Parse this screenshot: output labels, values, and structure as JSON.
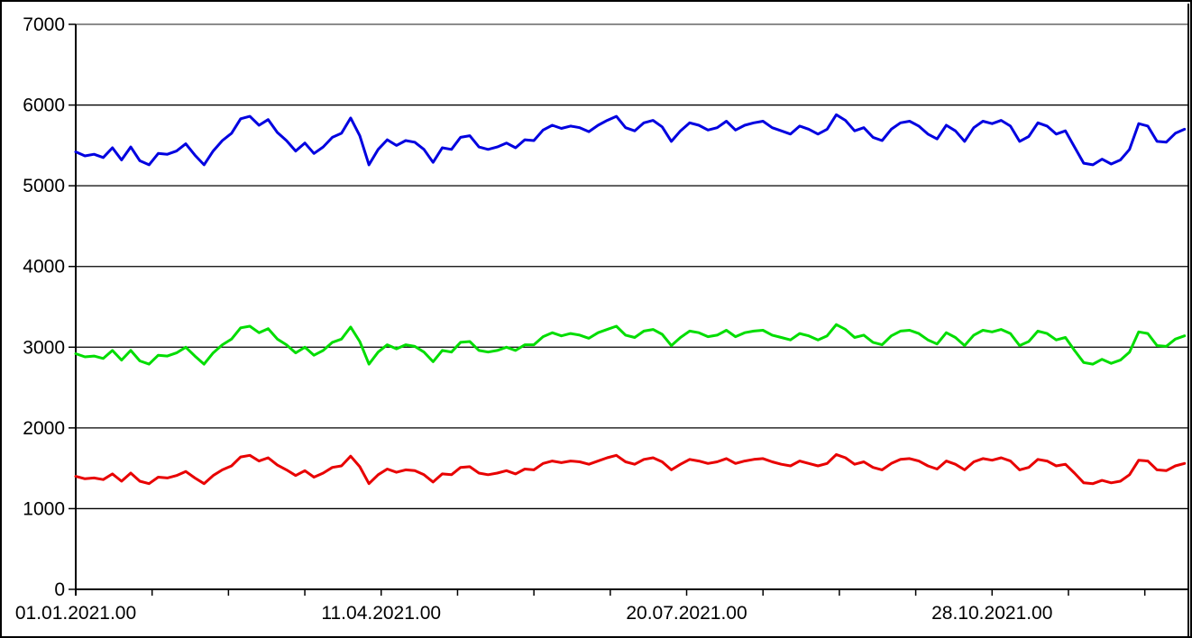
{
  "chart_data": {
    "type": "line",
    "title": "",
    "xlabel": "",
    "ylabel": "",
    "legend_position": "none",
    "grid": "horizontal",
    "ylim": [
      0,
      7000
    ],
    "y_ticks": [
      0,
      1000,
      2000,
      3000,
      4000,
      5000,
      6000,
      7000
    ],
    "xlim_days": [
      0,
      364
    ],
    "x_tick_interval_days": 25,
    "x_axis_labels": [
      {
        "label": "01.01.2021.00",
        "day": 0
      },
      {
        "label": "11.04.2021.00",
        "day": 100
      },
      {
        "label": "20.07.2021.00",
        "day": 200
      },
      {
        "label": "28.10.2021.00",
        "day": 300
      }
    ],
    "x_start_day": 0,
    "x_step_days": 3,
    "colors": {
      "background": "#ffffff",
      "axis": "#000000",
      "gridline": "#000000",
      "plot_top_border": "#8c8c8c",
      "right_border": "#000000",
      "tick_label": "#000000"
    },
    "series": [
      {
        "name": "series-blue",
        "color": "#0000e0",
        "values": [
          5420,
          5370,
          5390,
          5350,
          5470,
          5320,
          5480,
          5310,
          5260,
          5400,
          5390,
          5430,
          5520,
          5380,
          5260,
          5430,
          5560,
          5650,
          5830,
          5860,
          5750,
          5820,
          5660,
          5560,
          5430,
          5530,
          5400,
          5480,
          5600,
          5650,
          5840,
          5620,
          5260,
          5450,
          5570,
          5500,
          5560,
          5540,
          5450,
          5290,
          5470,
          5450,
          5600,
          5620,
          5480,
          5450,
          5480,
          5530,
          5470,
          5570,
          5560,
          5690,
          5750,
          5710,
          5740,
          5720,
          5670,
          5750,
          5810,
          5860,
          5720,
          5680,
          5780,
          5810,
          5730,
          5550,
          5680,
          5780,
          5750,
          5690,
          5720,
          5800,
          5690,
          5750,
          5780,
          5800,
          5720,
          5680,
          5640,
          5740,
          5700,
          5640,
          5700,
          5880,
          5810,
          5680,
          5720,
          5600,
          5560,
          5700,
          5780,
          5800,
          5740,
          5640,
          5580,
          5750,
          5680,
          5550,
          5720,
          5800,
          5770,
          5810,
          5740,
          5550,
          5610,
          5780,
          5740,
          5640,
          5680,
          5480,
          5280,
          5260,
          5330,
          5270,
          5320,
          5450,
          5770,
          5740,
          5550,
          5540,
          5650,
          5700
        ]
      },
      {
        "name": "series-green",
        "color": "#00dd00",
        "values": [
          2920,
          2880,
          2890,
          2860,
          2960,
          2840,
          2960,
          2830,
          2790,
          2900,
          2890,
          2930,
          3000,
          2890,
          2790,
          2930,
          3030,
          3100,
          3240,
          3260,
          3180,
          3230,
          3100,
          3030,
          2930,
          3000,
          2900,
          2960,
          3060,
          3100,
          3250,
          3070,
          2790,
          2940,
          3030,
          2980,
          3030,
          3010,
          2940,
          2820,
          2960,
          2940,
          3060,
          3070,
          2960,
          2940,
          2960,
          3000,
          2960,
          3030,
          3030,
          3130,
          3180,
          3140,
          3170,
          3150,
          3110,
          3180,
          3220,
          3260,
          3150,
          3120,
          3200,
          3220,
          3160,
          3020,
          3120,
          3200,
          3180,
          3130,
          3150,
          3210,
          3130,
          3180,
          3200,
          3210,
          3150,
          3120,
          3090,
          3170,
          3140,
          3090,
          3140,
          3280,
          3220,
          3120,
          3150,
          3060,
          3030,
          3140,
          3200,
          3210,
          3170,
          3090,
          3040,
          3180,
          3120,
          3020,
          3150,
          3210,
          3190,
          3220,
          3170,
          3020,
          3070,
          3200,
          3170,
          3090,
          3120,
          2960,
          2810,
          2790,
          2850,
          2800,
          2840,
          2940,
          3190,
          3170,
          3020,
          3010,
          3100,
          3140
        ]
      },
      {
        "name": "series-red",
        "color": "#e80000",
        "values": [
          1400,
          1370,
          1380,
          1360,
          1430,
          1340,
          1440,
          1340,
          1310,
          1390,
          1380,
          1410,
          1460,
          1380,
          1310,
          1410,
          1480,
          1530,
          1640,
          1660,
          1590,
          1630,
          1540,
          1480,
          1410,
          1470,
          1390,
          1440,
          1510,
          1530,
          1650,
          1520,
          1310,
          1420,
          1490,
          1450,
          1480,
          1470,
          1420,
          1330,
          1430,
          1420,
          1510,
          1520,
          1440,
          1420,
          1440,
          1470,
          1430,
          1490,
          1480,
          1560,
          1590,
          1570,
          1590,
          1580,
          1550,
          1590,
          1630,
          1660,
          1580,
          1550,
          1610,
          1630,
          1580,
          1480,
          1550,
          1610,
          1590,
          1560,
          1580,
          1620,
          1560,
          1590,
          1610,
          1620,
          1580,
          1550,
          1530,
          1590,
          1560,
          1530,
          1560,
          1670,
          1630,
          1550,
          1580,
          1510,
          1480,
          1560,
          1610,
          1620,
          1590,
          1530,
          1490,
          1590,
          1550,
          1480,
          1580,
          1620,
          1600,
          1630,
          1590,
          1480,
          1510,
          1610,
          1590,
          1530,
          1550,
          1440,
          1320,
          1310,
          1350,
          1320,
          1340,
          1420,
          1600,
          1590,
          1480,
          1470,
          1530,
          1560
        ]
      }
    ]
  }
}
